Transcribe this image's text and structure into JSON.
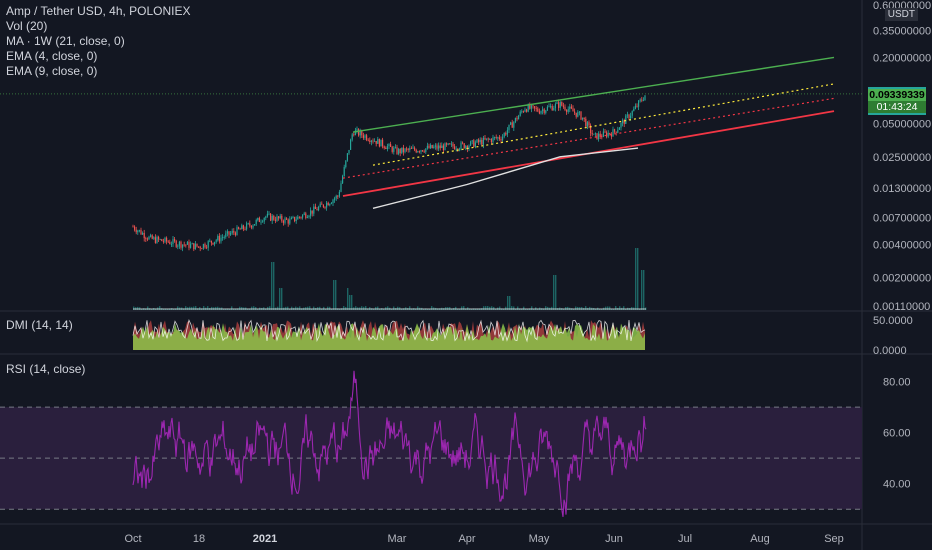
{
  "legend": {
    "title": "Amp / Tether USD, 4h, POLONIEX",
    "vol": "Vol (20)",
    "ma": "MA · 1W (21, close, 0)",
    "ema4": "EMA (4, close, 0)",
    "ema9": "EMA (9, close, 0)"
  },
  "currency": "USDT",
  "last_price": {
    "value": "0.09339339",
    "timer": "01:43:24"
  },
  "dmi_title": "DMI (14, 14)",
  "rsi_title": "RSI (14, close)",
  "colors": {
    "background": "#131722",
    "up": "#26a69a",
    "down": "#ef5350",
    "channel_top": "#4caf50",
    "channel_bottom": "#f23645",
    "rsi": "#9c27b0",
    "rsi_band": "#2a1f3d",
    "dmi_plus": "#8bc34a",
    "dmi_minus": "#a03c3c"
  },
  "chart_data": [
    {
      "type": "candlestick",
      "title": "Amp / Tether USD, 4h, POLONIEX",
      "y_scale": "log",
      "y_ticks": [
        "0.60000000",
        "0.35000000",
        "0.20000000",
        "0.09339339",
        "0.05000000",
        "0.02500000",
        "0.01300000",
        "0.00700000",
        "0.00400000",
        "0.00200000",
        "0.00110000"
      ],
      "x_ticks": [
        "Oct",
        "18",
        "2021",
        "Mar",
        "Apr",
        "May",
        "Jun",
        "Jul",
        "Aug",
        "Sep"
      ],
      "price_path": [
        [
          "Oct",
          0.0058
        ],
        [
          "Oct 10",
          0.0045
        ],
        [
          "18",
          0.0038
        ],
        [
          "Nov",
          0.0044
        ],
        [
          "Dec",
          0.0055
        ],
        [
          "Jan",
          0.0063
        ],
        [
          "2021",
          0.0072
        ],
        [
          "Jan 20",
          0.0065
        ],
        [
          "Feb 1",
          0.0085
        ],
        [
          "Feb 8",
          0.011
        ],
        [
          "Feb 12",
          0.043
        ],
        [
          "Feb 20",
          0.036
        ],
        [
          "Mar",
          0.028
        ],
        [
          "Mar 15",
          0.03
        ],
        [
          "Apr",
          0.032
        ],
        [
          "Apr 15",
          0.038
        ],
        [
          "Apr 25",
          0.07
        ],
        [
          "May",
          0.066
        ],
        [
          "May 10",
          0.075
        ],
        [
          "May 20",
          0.058
        ],
        [
          "May 25",
          0.038
        ],
        [
          "Jun",
          0.042
        ],
        [
          "Jun 8",
          0.065
        ],
        [
          "Jun 12",
          0.0934
        ]
      ],
      "channel_top": [
        [
          "Feb 12",
          0.042
        ],
        [
          "Sep",
          0.2
        ]
      ],
      "channel_bottom": [
        [
          "Feb 10",
          0.011
        ],
        [
          "Sep",
          0.065
        ]
      ],
      "channel_mid": [
        [
          "Feb 20",
          0.021
        ],
        [
          "Sep",
          0.115
        ]
      ],
      "channel_dotted_red": [
        [
          "Feb 10",
          0.016
        ],
        [
          "Sep",
          0.085
        ]
      ],
      "white_ma_line": [
        [
          "Feb 20",
          0.0085
        ],
        [
          "Apr",
          0.014
        ],
        [
          "May 10",
          0.025
        ],
        [
          "Jun 10",
          0.03
        ]
      ],
      "last_price": 0.09339339
    },
    {
      "type": "area",
      "title": "DMI (14, 14)",
      "y_ticks": [
        "50.0000",
        "0.0000"
      ]
    },
    {
      "type": "line",
      "title": "RSI (14, close)",
      "y_ticks": [
        "80.00",
        "60.00",
        "40.00"
      ],
      "bands": [
        70,
        50,
        30
      ],
      "y_range": [
        25,
        90
      ]
    }
  ]
}
